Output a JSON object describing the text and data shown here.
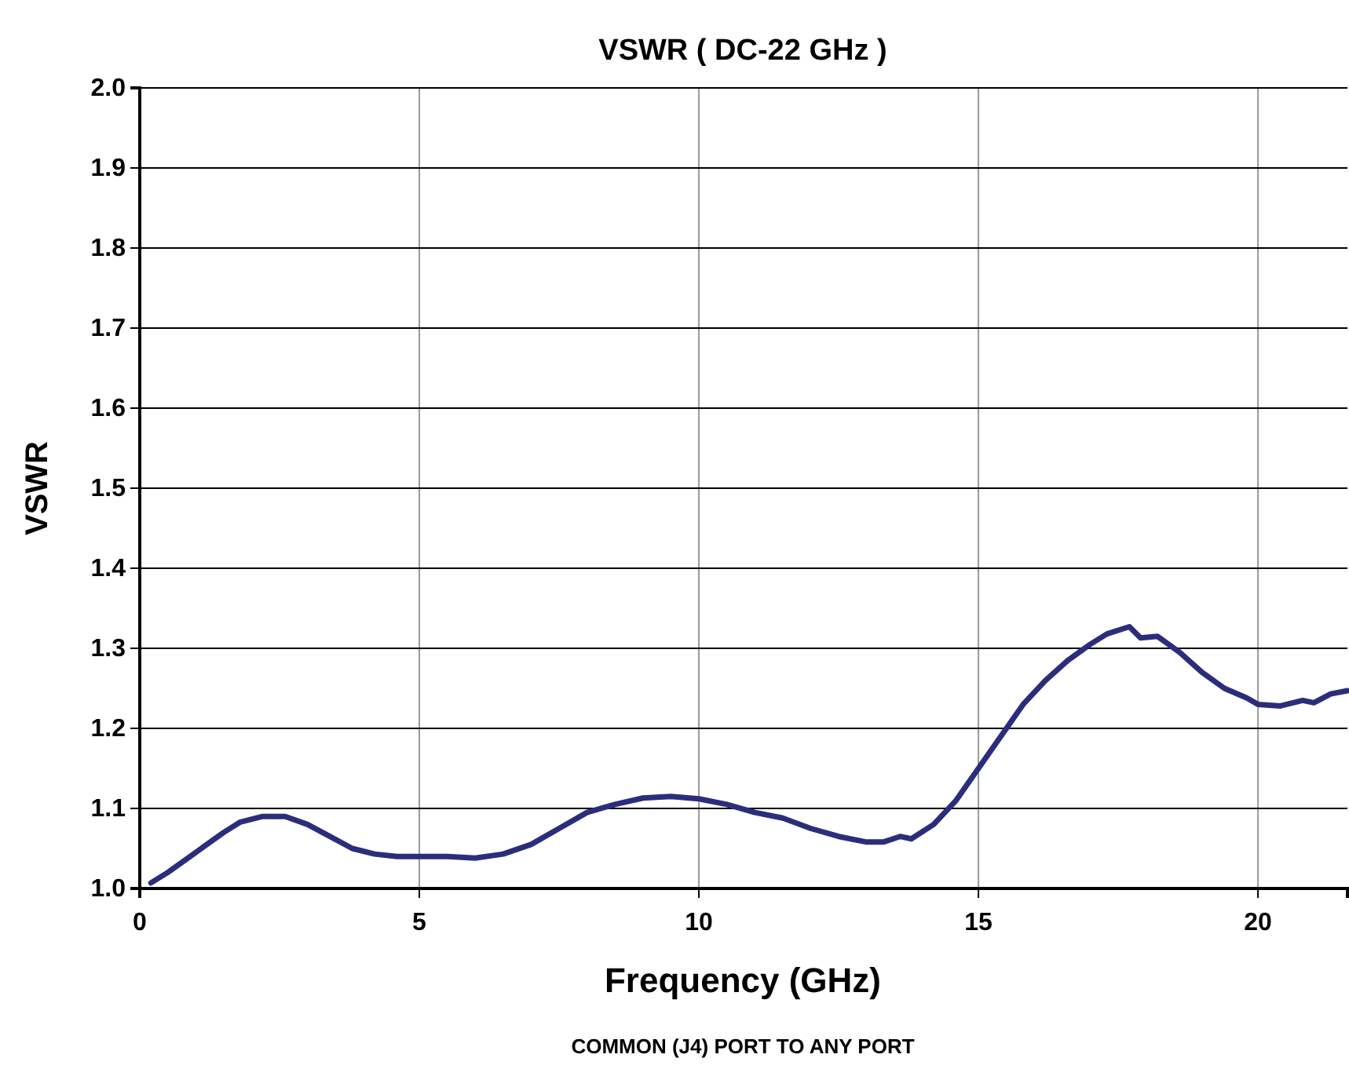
{
  "chart_data": {
    "type": "line",
    "title": "VSWR ( DC-22 GHz )",
    "xlabel": "Frequency (GHz)",
    "ylabel": "VSWR",
    "annotations": [
      "COMMON (J4) PORT TO ANY PORT"
    ],
    "xlim": [
      0,
      21.6
    ],
    "xticks": [
      0,
      5,
      10,
      15,
      20
    ],
    "ylim": [
      1.0,
      2.0
    ],
    "yticks": [
      {
        "value": 1.0,
        "label": "1.0"
      },
      {
        "value": 1.1,
        "label": "1.1"
      },
      {
        "value": 1.2,
        "label": "1.2"
      },
      {
        "value": 1.3,
        "label": "1.3"
      },
      {
        "value": 1.4,
        "label": "1.4"
      },
      {
        "value": 1.5,
        "label": "1.5"
      },
      {
        "value": 1.6,
        "label": "1.6"
      },
      {
        "value": 1.7,
        "label": "1.7"
      },
      {
        "value": 1.8,
        "label": "1.8"
      },
      {
        "value": 1.9,
        "label": "1.9"
      },
      {
        "value": 2.0,
        "label": "2.0"
      }
    ],
    "grid": true,
    "marker": "none",
    "line_style": "solid",
    "series": [
      {
        "color": "#2b2d7c",
        "x": [
          0.2,
          0.5,
          0.8,
          1.2,
          1.5,
          1.8,
          2.2,
          2.6,
          3.0,
          3.4,
          3.8,
          4.2,
          4.6,
          5.0,
          5.5,
          6.0,
          6.5,
          7.0,
          7.5,
          8.0,
          8.5,
          9.0,
          9.5,
          10.0,
          10.5,
          11.0,
          11.5,
          12.0,
          12.5,
          13.0,
          13.3,
          13.6,
          13.8,
          14.2,
          14.6,
          15.0,
          15.4,
          15.8,
          16.2,
          16.6,
          17.0,
          17.3,
          17.7,
          17.9,
          18.2,
          18.6,
          19.0,
          19.4,
          19.8,
          20.0,
          20.4,
          20.8,
          21.0,
          21.3,
          21.6
        ],
        "values": [
          1.007,
          1.02,
          1.035,
          1.055,
          1.07,
          1.083,
          1.09,
          1.09,
          1.08,
          1.065,
          1.05,
          1.043,
          1.04,
          1.04,
          1.04,
          1.038,
          1.043,
          1.055,
          1.075,
          1.095,
          1.105,
          1.113,
          1.115,
          1.112,
          1.105,
          1.095,
          1.088,
          1.075,
          1.065,
          1.058,
          1.058,
          1.065,
          1.062,
          1.08,
          1.11,
          1.15,
          1.19,
          1.23,
          1.26,
          1.285,
          1.305,
          1.318,
          1.327,
          1.313,
          1.315,
          1.295,
          1.27,
          1.25,
          1.238,
          1.23,
          1.228,
          1.235,
          1.232,
          1.243,
          1.247
        ]
      }
    ]
  }
}
